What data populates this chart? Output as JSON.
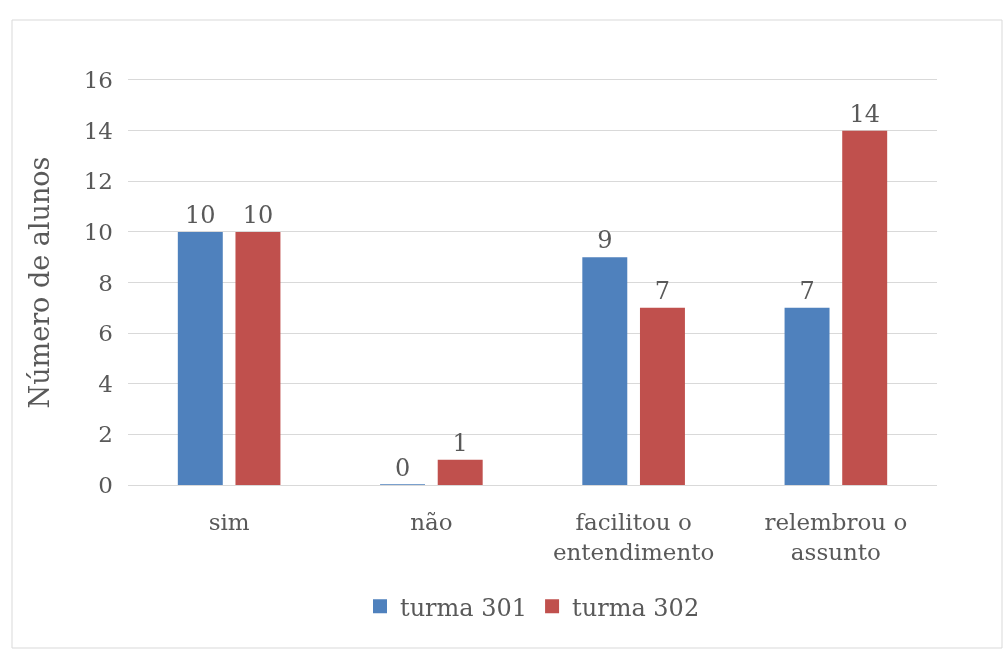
{
  "chart_data": {
    "type": "bar",
    "ylabel": "Número de alunos",
    "categories": [
      "sim",
      "não",
      "facilitou o\nentendimento",
      "relembrou o\nassunto"
    ],
    "series": [
      {
        "name": "turma 301",
        "color": "#4f81bd",
        "values": [
          10,
          0,
          9,
          7
        ]
      },
      {
        "name": "turma 302",
        "color": "#c0504d",
        "values": [
          10,
          1,
          7,
          14
        ]
      }
    ],
    "ylim": [
      0,
      16
    ],
    "yticks": [
      0,
      2,
      4,
      6,
      8,
      10,
      12,
      14,
      16
    ],
    "grid": "y",
    "legend": "bottom",
    "data_labels": true
  }
}
